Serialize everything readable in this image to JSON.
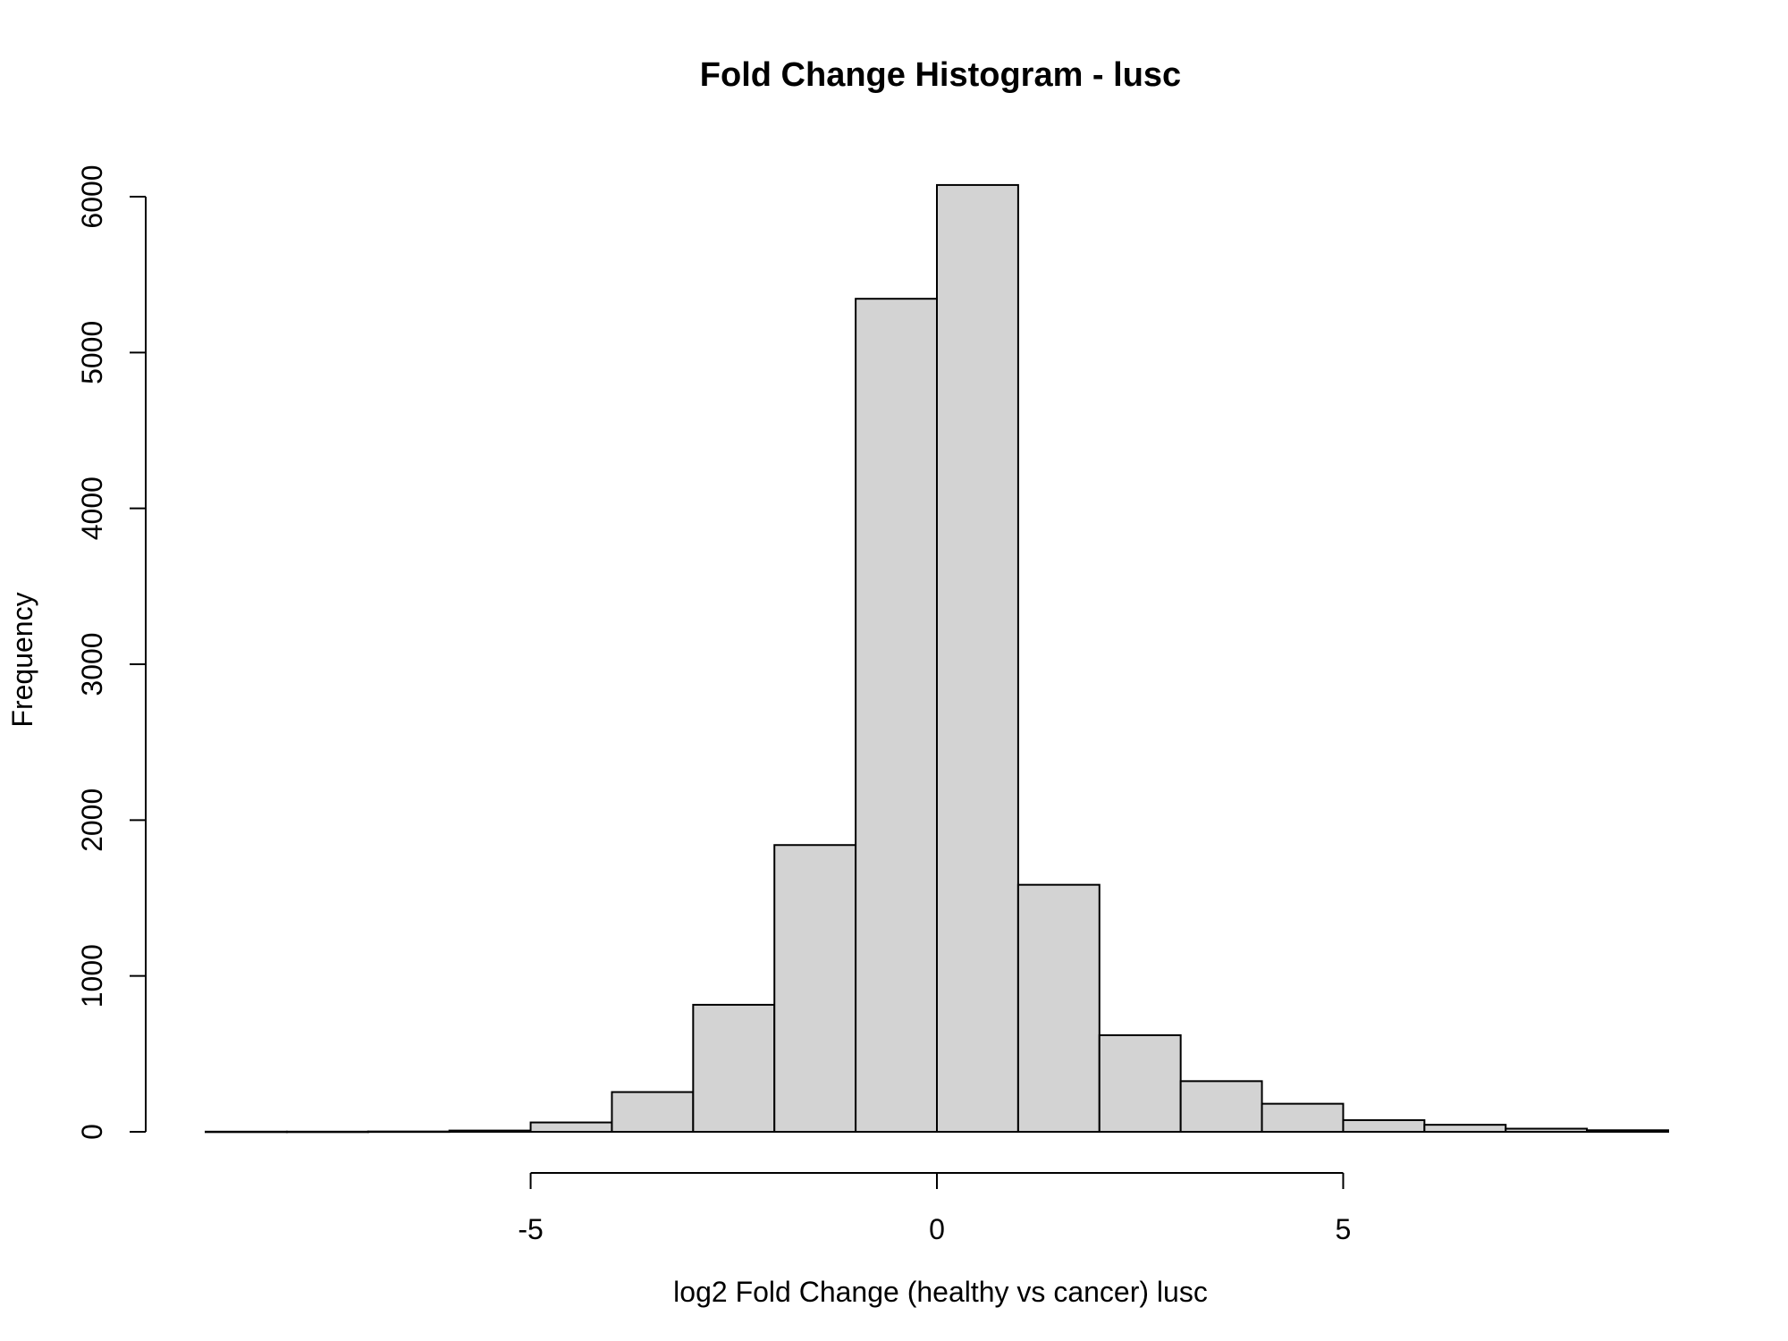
{
  "chart_data": {
    "type": "bar",
    "title": "Fold Change Histogram -  lusc",
    "xlabel": "log2 Fold Change (healthy  vs cancer) lusc",
    "ylabel": "Frequency",
    "xlim": [
      -9,
      9
    ],
    "ylim": [
      0,
      6000
    ],
    "x_ticks": [
      -5,
      0,
      5
    ],
    "y_ticks": [
      0,
      1000,
      2000,
      3000,
      4000,
      5000,
      6000
    ],
    "bins": [
      {
        "from": -9,
        "to": -8,
        "count": 1
      },
      {
        "from": -8,
        "to": -7,
        "count": 1
      },
      {
        "from": -7,
        "to": -6,
        "count": 2
      },
      {
        "from": -6,
        "to": -5,
        "count": 8
      },
      {
        "from": -5,
        "to": -4,
        "count": 60
      },
      {
        "from": -4,
        "to": -3,
        "count": 255
      },
      {
        "from": -3,
        "to": -2,
        "count": 815
      },
      {
        "from": -2,
        "to": -1,
        "count": 1840
      },
      {
        "from": -1,
        "to": 0,
        "count": 5345
      },
      {
        "from": 0,
        "to": 1,
        "count": 6075
      },
      {
        "from": 1,
        "to": 2,
        "count": 1585
      },
      {
        "from": 2,
        "to": 3,
        "count": 620
      },
      {
        "from": 3,
        "to": 4,
        "count": 325
      },
      {
        "from": 4,
        "to": 5,
        "count": 180
      },
      {
        "from": 5,
        "to": 6,
        "count": 75
      },
      {
        "from": 6,
        "to": 7,
        "count": 45
      },
      {
        "from": 7,
        "to": 8,
        "count": 20
      },
      {
        "from": 8,
        "to": 9,
        "count": 10
      }
    ],
    "grid": false,
    "legend": "none",
    "colors": {
      "bar_fill": "#d3d3d3",
      "bar_stroke": "#000000"
    }
  }
}
